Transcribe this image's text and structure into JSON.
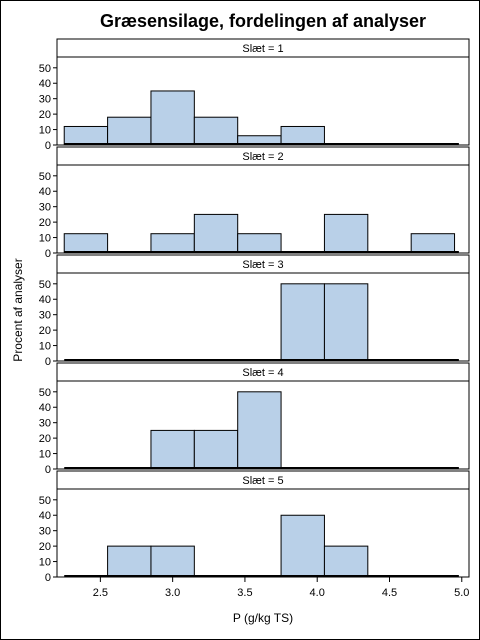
{
  "chart_data": {
    "type": "bar",
    "title": "Græsensilage, fordelingen af analyser",
    "xlabel": "P (g/kg TS)",
    "ylabel": "Procent af analyser",
    "xlim": [
      2.2,
      5.05
    ],
    "ylim": [
      0,
      57
    ],
    "x_ticks": [
      "2.5",
      "3.0",
      "3.5",
      "4.0",
      "4.5",
      "5.0"
    ],
    "y_ticks": [
      "0",
      "10",
      "20",
      "30",
      "40",
      "50"
    ],
    "bin_width": 0.3,
    "bar_fill": "#b9d0e8",
    "panels": [
      {
        "label": "Slæt = 1",
        "bins": [
          {
            "x": 2.4,
            "value": 12
          },
          {
            "x": 2.7,
            "value": 18
          },
          {
            "x": 3.0,
            "value": 35
          },
          {
            "x": 3.3,
            "value": 18
          },
          {
            "x": 3.6,
            "value": 6
          },
          {
            "x": 3.9,
            "value": 12
          }
        ]
      },
      {
        "label": "Slæt = 2",
        "bins": [
          {
            "x": 2.4,
            "value": 12.5
          },
          {
            "x": 3.0,
            "value": 12.5
          },
          {
            "x": 3.3,
            "value": 25
          },
          {
            "x": 3.6,
            "value": 12.5
          },
          {
            "x": 4.2,
            "value": 25
          },
          {
            "x": 4.8,
            "value": 12.5
          }
        ]
      },
      {
        "label": "Slæt = 3",
        "bins": [
          {
            "x": 3.9,
            "value": 50
          },
          {
            "x": 4.2,
            "value": 50
          }
        ]
      },
      {
        "label": "Slæt = 4",
        "bins": [
          {
            "x": 3.0,
            "value": 25
          },
          {
            "x": 3.3,
            "value": 25
          },
          {
            "x": 3.6,
            "value": 50
          }
        ]
      },
      {
        "label": "Slæt = 5",
        "bins": [
          {
            "x": 2.7,
            "value": 20
          },
          {
            "x": 3.0,
            "value": 20
          },
          {
            "x": 3.9,
            "value": 40
          },
          {
            "x": 4.2,
            "value": 20
          }
        ]
      }
    ]
  }
}
